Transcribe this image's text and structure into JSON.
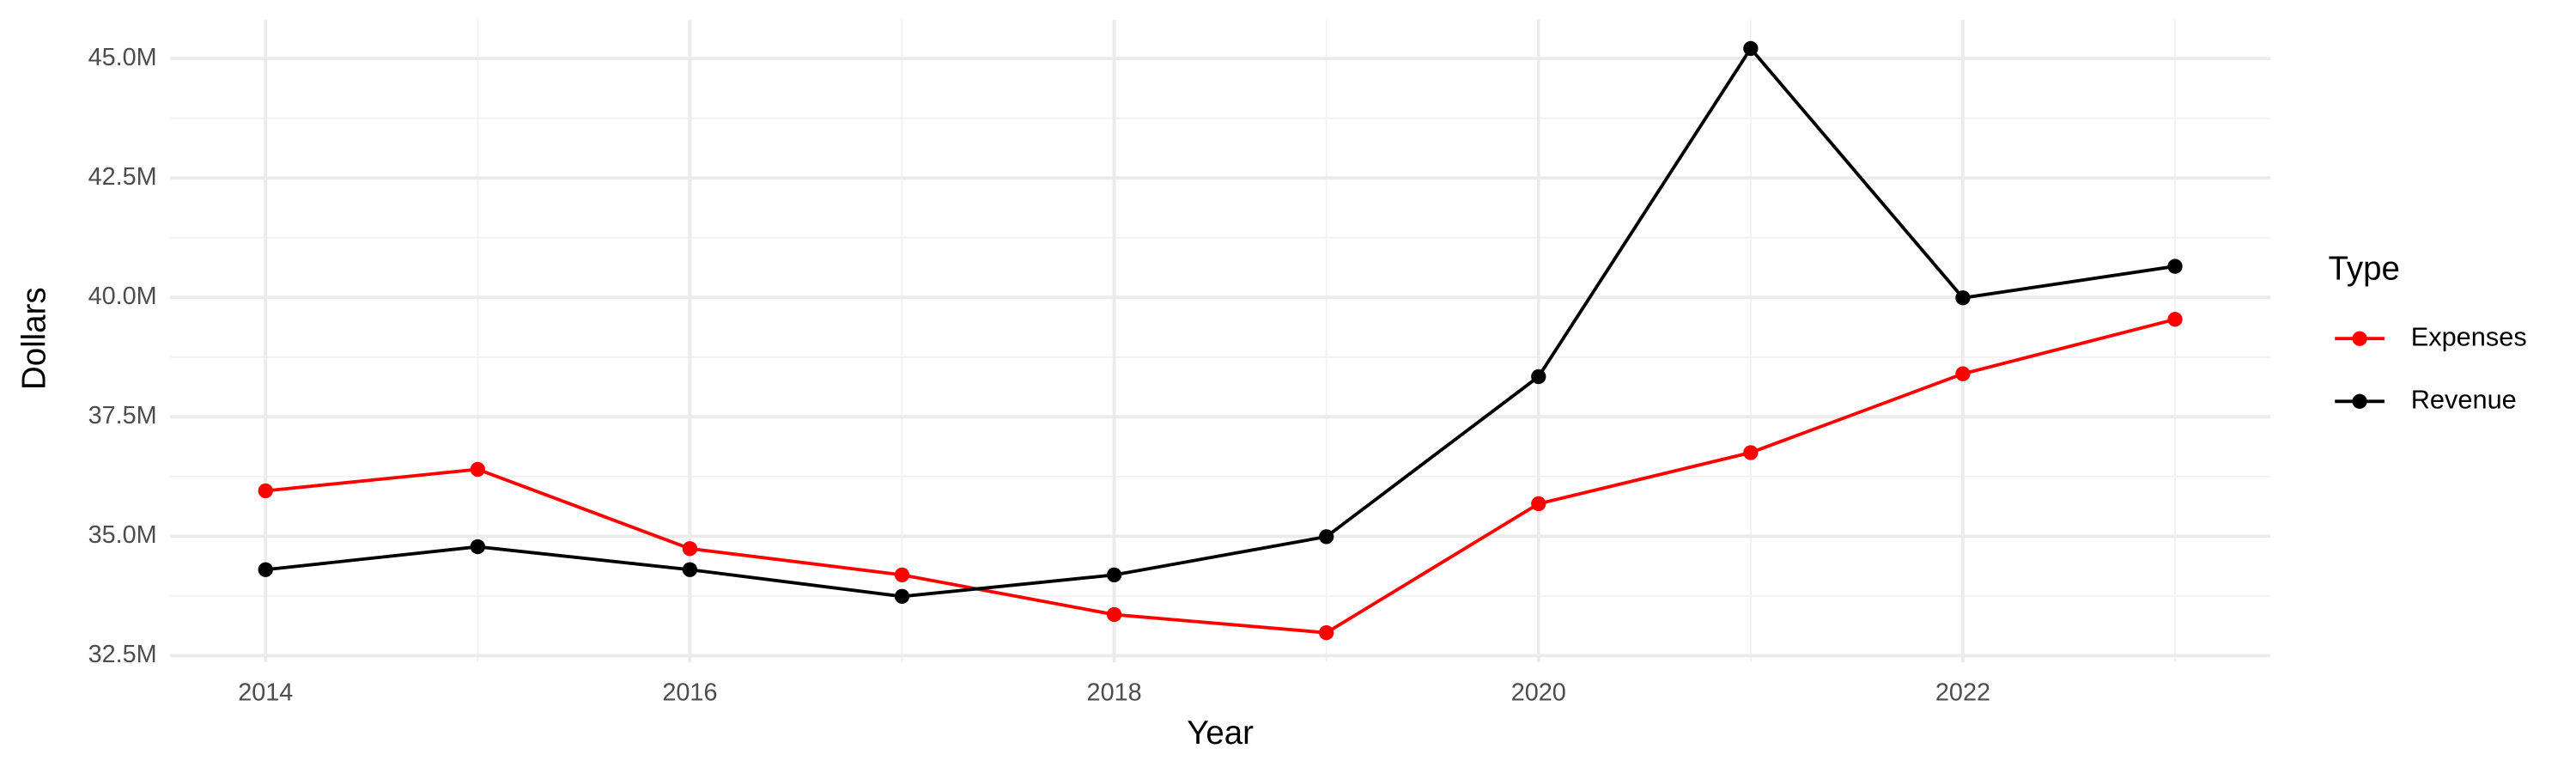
{
  "chart_data": {
    "type": "line",
    "x_label": "Year",
    "y_label": "Dollars",
    "legend_title": "Type",
    "legend_position": "right",
    "grid": true,
    "x": [
      2014,
      2015,
      2016,
      2017,
      2018,
      2019,
      2020,
      2021,
      2022,
      2023
    ],
    "series": [
      {
        "name": "Expenses",
        "color": "#ff0000",
        "values": [
          35950000,
          36400000,
          34740000,
          34190000,
          33360000,
          32980000,
          35680000,
          36750000,
          38400000,
          39540000
        ]
      },
      {
        "name": "Revenue",
        "color": "#000000",
        "values": [
          34300000,
          34780000,
          34300000,
          33740000,
          34190000,
          34990000,
          38340000,
          45210000,
          39990000,
          40650000
        ]
      }
    ],
    "xlim": [
      2013.55,
      2023.45
    ],
    "xticks": [
      2014,
      2016,
      2018,
      2020,
      2022
    ],
    "ylim": [
      32360000,
      45810000
    ],
    "yticks": [
      {
        "value": 32500000,
        "label": "32.5M"
      },
      {
        "value": 35000000,
        "label": "35.0M"
      },
      {
        "value": 37500000,
        "label": "37.5M"
      },
      {
        "value": 40000000,
        "label": "40.0M"
      },
      {
        "value": 42500000,
        "label": "42.5M"
      },
      {
        "value": 45000000,
        "label": "45.0M"
      }
    ]
  }
}
